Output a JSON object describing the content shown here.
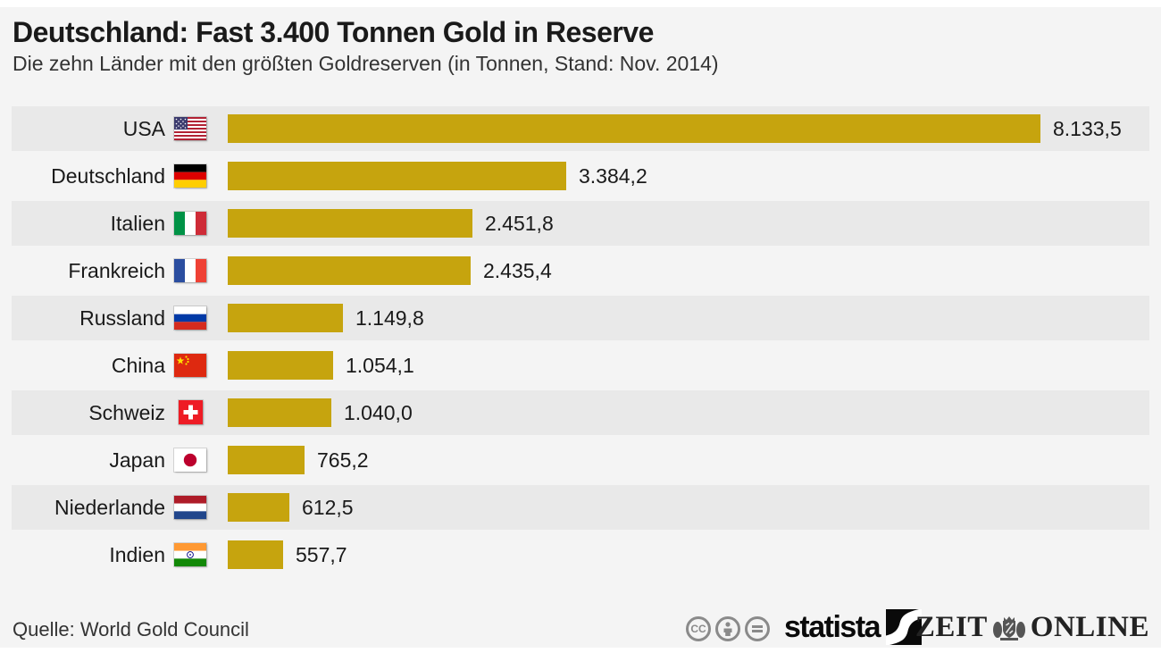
{
  "header": {
    "title": "Deutschland: Fast 3.400 Tonnen Gold in Reserve",
    "subtitle": "Die zehn Länder mit den größten Goldreserven (in Tonnen, Stand: Nov. 2014)"
  },
  "chart_data": {
    "type": "bar",
    "orientation": "horizontal",
    "title": "Deutschland: Fast 3.400 Tonnen Gold in Reserve",
    "subtitle": "Die zehn Länder mit den größten Goldreserven (in Tonnen, Stand: Nov. 2014)",
    "unit": "Tonnen",
    "as_of": "Nov. 2014",
    "xlim": [
      0,
      8133.5
    ],
    "grid": false,
    "legend": false,
    "categories": [
      "USA",
      "Deutschland",
      "Italien",
      "Frankreich",
      "Russland",
      "China",
      "Schweiz",
      "Japan",
      "Niederlande",
      "Indien"
    ],
    "values": [
      8133.5,
      3384.2,
      2451.8,
      2435.4,
      1149.8,
      1054.1,
      1040.0,
      765.2,
      612.5,
      557.7
    ],
    "value_labels": [
      "8.133,5",
      "3.384,2",
      "2.451,8",
      "2.435,4",
      "1.149,8",
      "1.054,1",
      "1.040,0",
      "765,2",
      "612,5",
      "557,7"
    ],
    "flag_icons": [
      "flag-usa-icon",
      "flag-germany-icon",
      "flag-italy-icon",
      "flag-france-icon",
      "flag-russia-icon",
      "flag-china-icon",
      "flag-switzerland-icon",
      "flag-japan-icon",
      "flag-netherlands-icon",
      "flag-india-icon"
    ],
    "flag_codes": [
      "us",
      "de",
      "it",
      "fr",
      "ru",
      "cn",
      "ch",
      "jp",
      "nl",
      "in"
    ]
  },
  "colors": {
    "bar": "#C6A40E",
    "row_band": "#e9e9e9",
    "background": "#f4f4f4",
    "text": "#1a1a1a"
  },
  "footer": {
    "source": "Quelle: World Gold Council",
    "license_icons": [
      "cc-icon",
      "cc-by-icon",
      "cc-nd-icon"
    ],
    "statista_logo_text": "statista",
    "zeit_logo_left": "ZEIT",
    "zeit_logo_right": "ONLINE"
  }
}
